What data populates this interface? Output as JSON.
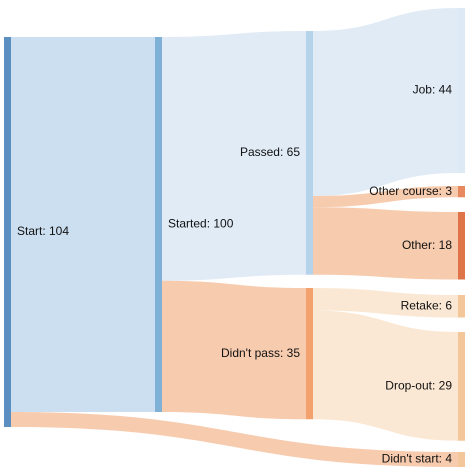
{
  "chart_data": {
    "type": "sankey",
    "colors": {
      "start": "#5b8fc2",
      "started": "#7fb0d6",
      "passed": "#b5d3ea",
      "job": "#dde9f4",
      "didnt_pass": "#f4a26d",
      "other_course": "#e8885e",
      "other": "#df7448",
      "retake": "#f4c79a",
      "dropout": "#f4c79a",
      "didnt_start": "#f4c79a",
      "link_blue": "#c3d9ee",
      "link_blue_light": "#dbe8f5",
      "link_orange": "#f6c2a0",
      "link_peach": "#f9e4cc"
    },
    "nodes": [
      {
        "id": "start",
        "name": "Start",
        "value": 104,
        "label": "Start: 104",
        "column": 0
      },
      {
        "id": "started",
        "name": "Started",
        "value": 100,
        "label": "Started: 100",
        "column": 1
      },
      {
        "id": "passed",
        "name": "Passed",
        "value": 65,
        "label": "Passed: 65",
        "column": 2
      },
      {
        "id": "didnt_pass",
        "name": "Didn't pass",
        "value": 35,
        "label": "Didn't pass: 35",
        "column": 2
      },
      {
        "id": "job",
        "name": "Job",
        "value": 44,
        "label": "Job: 44",
        "column": 3
      },
      {
        "id": "other_course",
        "name": "Other course",
        "value": 3,
        "label": "Other course: 3",
        "column": 3
      },
      {
        "id": "other",
        "name": "Other",
        "value": 18,
        "label": "Other: 18",
        "column": 3
      },
      {
        "id": "retake",
        "name": "Retake",
        "value": 6,
        "label": "Retake: 6",
        "column": 3
      },
      {
        "id": "dropout",
        "name": "Drop-out",
        "value": 29,
        "label": "Drop-out: 29",
        "column": 3
      },
      {
        "id": "didnt_start",
        "name": "Didn't start",
        "value": 4,
        "label": "Didn't start: 4",
        "column": 3
      }
    ],
    "links": [
      {
        "source": "start",
        "target": "started",
        "value": 100
      },
      {
        "source": "start",
        "target": "didnt_start",
        "value": 4
      },
      {
        "source": "started",
        "target": "passed",
        "value": 65
      },
      {
        "source": "started",
        "target": "didnt_pass",
        "value": 35
      },
      {
        "source": "passed",
        "target": "job",
        "value": 44
      },
      {
        "source": "passed",
        "target": "other_course",
        "value": 3
      },
      {
        "source": "passed",
        "target": "other",
        "value": 18
      },
      {
        "source": "didnt_pass",
        "target": "retake",
        "value": 6
      },
      {
        "source": "didnt_pass",
        "target": "dropout",
        "value": 29
      }
    ]
  }
}
